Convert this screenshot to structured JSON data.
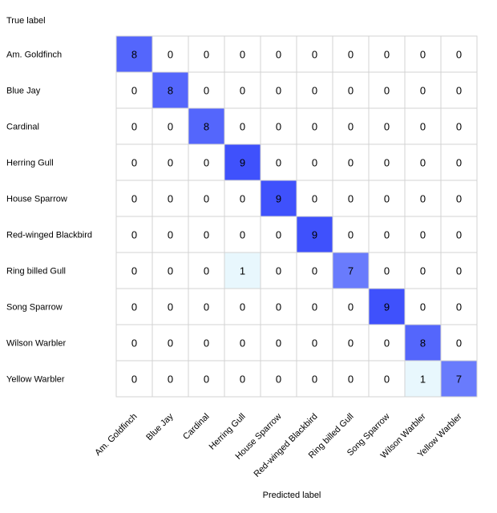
{
  "chart_data": {
    "type": "heatmap",
    "title": "",
    "ylabel": "True label",
    "xlabel": "Predicted label",
    "row_labels": [
      "Am. Goldfinch",
      "Blue Jay",
      "Cardinal",
      "Herring Gull",
      "House Sparrow",
      "Red-winged Blackbird",
      "Ring billed Gull",
      "Song Sparrow",
      "Wilson Warbler",
      "Yellow Warbler"
    ],
    "col_labels": [
      "Am. Goldfinch",
      "Blue Jay",
      "Cardinal",
      "Herring Gull",
      "House Sparrow",
      "Red-winged Blackbird",
      "Ring billed Gull",
      "Song Sparrow",
      "Wilson Warbler",
      "Yellow Warbler"
    ],
    "matrix": [
      [
        8,
        0,
        0,
        0,
        0,
        0,
        0,
        0,
        0,
        0
      ],
      [
        0,
        8,
        0,
        0,
        0,
        0,
        0,
        0,
        0,
        0
      ],
      [
        0,
        0,
        8,
        0,
        0,
        0,
        0,
        0,
        0,
        0
      ],
      [
        0,
        0,
        0,
        9,
        0,
        0,
        0,
        0,
        0,
        0
      ],
      [
        0,
        0,
        0,
        0,
        9,
        0,
        0,
        0,
        0,
        0
      ],
      [
        0,
        0,
        0,
        0,
        0,
        9,
        0,
        0,
        0,
        0
      ],
      [
        0,
        0,
        0,
        1,
        0,
        0,
        7,
        0,
        0,
        0
      ],
      [
        0,
        0,
        0,
        0,
        0,
        0,
        0,
        9,
        0,
        0
      ],
      [
        0,
        0,
        0,
        0,
        0,
        0,
        0,
        0,
        8,
        0
      ],
      [
        0,
        0,
        0,
        0,
        0,
        0,
        0,
        0,
        1,
        7
      ]
    ],
    "value_range": [
      0,
      9
    ],
    "colors": {
      "zero": "#ffffff",
      "low": "#e8f7fd",
      "high": "#3f51fc",
      "grid": "#d3d3d3"
    }
  }
}
